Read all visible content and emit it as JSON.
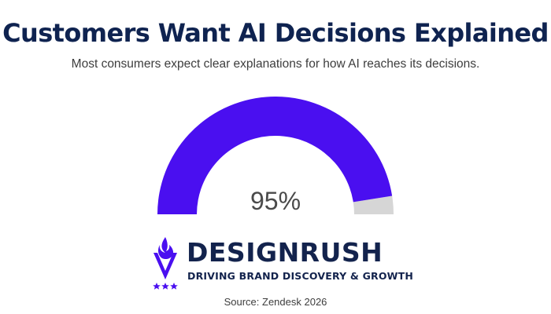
{
  "title": "Customers Want AI Decisions Explained",
  "subtitle": "Most consumers expect clear explanations for how AI reaches its decisions.",
  "chart_data": {
    "type": "gauge",
    "value": 95,
    "max": 100,
    "value_label": "95%",
    "colors": {
      "fill": "#4a0ff0",
      "remainder": "#d6d6d6"
    }
  },
  "brand": {
    "name": "DESIGNRUSH",
    "tagline": "DRIVING BRAND DISCOVERY & GROWTH",
    "color": "#13234d",
    "accent": "#4a0ff0",
    "icon": "flame-icon"
  },
  "source": "Source: Zendesk 2026"
}
